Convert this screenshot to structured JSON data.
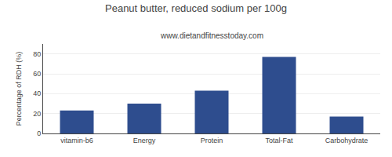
{
  "chart_data": {
    "type": "bar",
    "title": "Peanut butter, reduced sodium per 100g",
    "subtitle": "www.dietandfitnesstoday.com",
    "categories": [
      "vitamin-b6",
      "Energy",
      "Protein",
      "Total-Fat",
      "Carbohydrate"
    ],
    "values": [
      23,
      30,
      43,
      77,
      17
    ],
    "color": "#2e4d8e",
    "ylabel": "Percentage of RDH (%)",
    "ylim": [
      0,
      90
    ],
    "yticks": [
      0,
      20,
      40,
      60,
      80
    ],
    "grid": true
  }
}
